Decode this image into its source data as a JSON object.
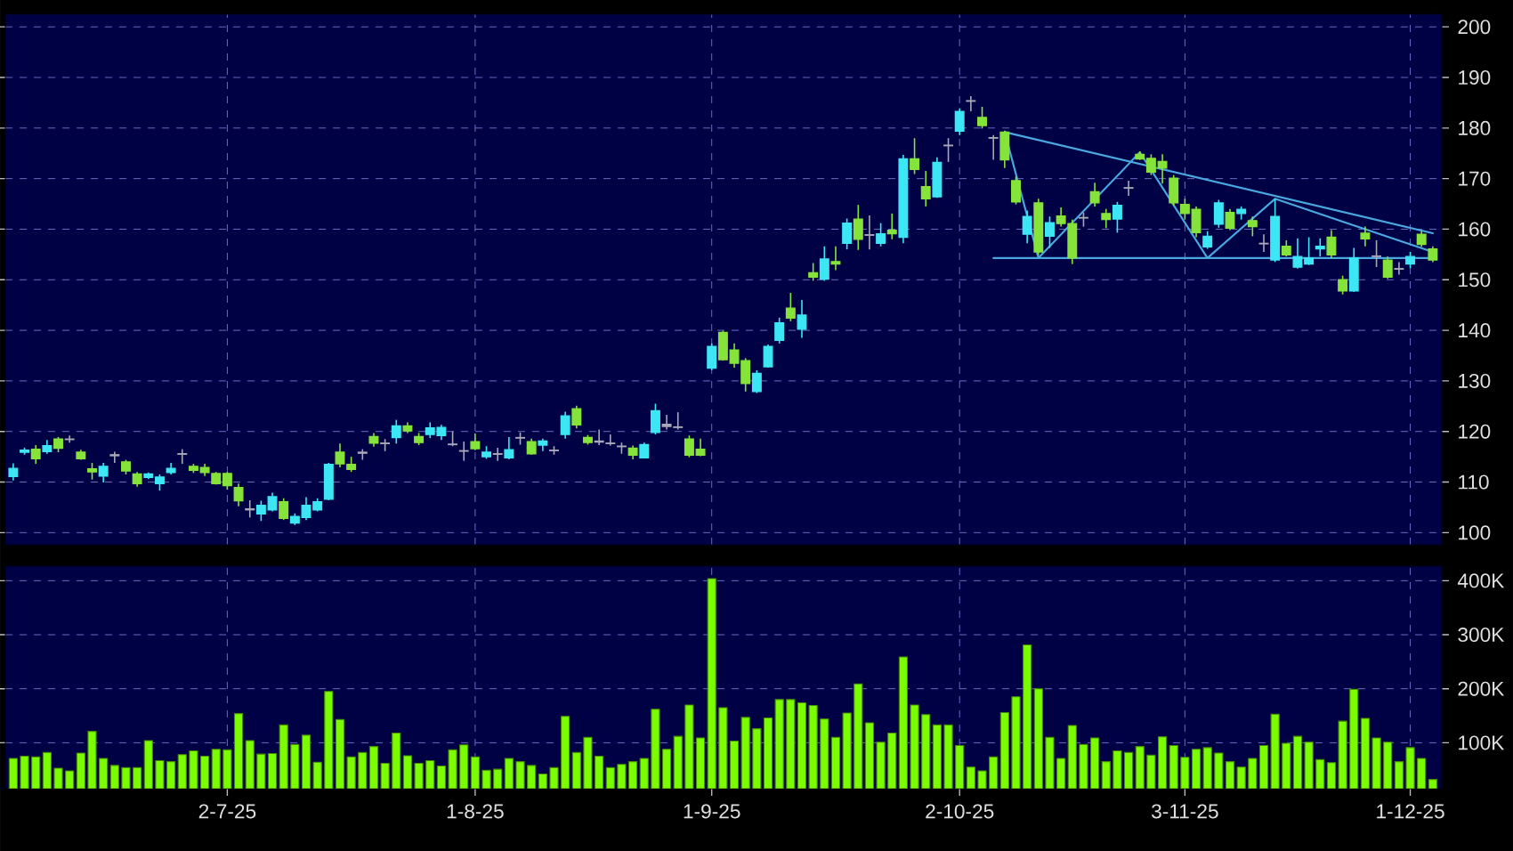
{
  "chart_data": [
    {
      "type": "candlestick",
      "tick_labels": "y",
      "grid": true,
      "ylim": [
        97.6,
        202.5
      ],
      "yticks": [
        100,
        110,
        120,
        130,
        140,
        150,
        160,
        170,
        180,
        190,
        200
      ],
      "categories": [
        null,
        null,
        null,
        null,
        null,
        null,
        null,
        null,
        null,
        null,
        null,
        null,
        null,
        null,
        null,
        null,
        null,
        null,
        null,
        null,
        null,
        null,
        null,
        null,
        null,
        null,
        null,
        null,
        null,
        null,
        null,
        null,
        null,
        null,
        null,
        null,
        null,
        null,
        null,
        null,
        null,
        null,
        null,
        null,
        null,
        null,
        null,
        null,
        null,
        null,
        null,
        null,
        null,
        null,
        null,
        null,
        null,
        null,
        null,
        null,
        null,
        null,
        null,
        null,
        null,
        null,
        null,
        null,
        null,
        null,
        null,
        null,
        null,
        null,
        null,
        null,
        null,
        null,
        null,
        null,
        null,
        null,
        null,
        null,
        null,
        null,
        null,
        null,
        null,
        null,
        null,
        null,
        null,
        null,
        null,
        null,
        null,
        null,
        null,
        null,
        null,
        null,
        null,
        null,
        null,
        null,
        null,
        null,
        null,
        null,
        null,
        null,
        null,
        null,
        null,
        null,
        null,
        null,
        null,
        null,
        null,
        null,
        null,
        null,
        null,
        null,
        null
      ],
      "ohlc": [
        [
          111.1,
          113.7,
          110.3,
          112.7
        ],
        [
          115.9,
          116.8,
          115.4,
          116.3
        ],
        [
          116.5,
          117.3,
          113.6,
          114.6
        ],
        [
          116.0,
          118.3,
          115.6,
          117.2
        ],
        [
          118.5,
          118.9,
          115.9,
          116.7
        ],
        [
          118.5,
          119.2,
          117.8,
          118.4
        ],
        [
          115.9,
          116.4,
          114.4,
          114.6
        ],
        [
          112.6,
          113.8,
          110.5,
          112.0
        ],
        [
          111.2,
          113.8,
          109.9,
          113.1
        ],
        [
          115.4,
          116.0,
          113.8,
          115.2
        ],
        [
          114.0,
          114.4,
          111.5,
          112.2
        ],
        [
          111.6,
          112.0,
          109.1,
          109.7
        ],
        [
          110.9,
          111.9,
          110.6,
          111.6
        ],
        [
          109.7,
          111.5,
          108.3,
          111.0
        ],
        [
          111.9,
          113.8,
          111.5,
          112.7
        ],
        [
          115.6,
          116.5,
          113.6,
          115.5
        ],
        [
          113.1,
          113.6,
          111.8,
          112.3
        ],
        [
          112.9,
          113.6,
          111.2,
          111.9
        ],
        [
          111.7,
          112.0,
          109.5,
          109.7
        ],
        [
          111.7,
          112.0,
          108.5,
          109.3
        ],
        [
          108.9,
          109.7,
          105.2,
          106.3
        ],
        [
          104.7,
          106.4,
          103.0,
          104.5
        ],
        [
          103.7,
          106.3,
          102.3,
          105.4
        ],
        [
          104.5,
          107.9,
          104.2,
          107.1
        ],
        [
          106.1,
          106.8,
          102.5,
          102.8
        ],
        [
          101.9,
          103.8,
          101.5,
          103.2
        ],
        [
          103.0,
          107.0,
          102.5,
          105.4
        ],
        [
          104.5,
          106.8,
          104.2,
          106.1
        ],
        [
          106.6,
          113.8,
          106.4,
          113.5
        ],
        [
          115.9,
          117.6,
          112.9,
          113.6
        ],
        [
          113.5,
          115.0,
          112.0,
          112.5
        ],
        [
          115.9,
          116.5,
          114.4,
          115.7
        ],
        [
          119.0,
          119.7,
          117.0,
          117.7
        ],
        [
          117.7,
          118.5,
          116.1,
          117.6
        ],
        [
          118.8,
          122.3,
          117.6,
          121.1
        ],
        [
          121.1,
          121.8,
          119.7,
          120.1
        ],
        [
          119.0,
          119.7,
          117.3,
          117.8
        ],
        [
          119.4,
          121.8,
          118.7,
          120.7
        ],
        [
          119.2,
          121.3,
          118.3,
          120.8
        ],
        [
          117.5,
          120.0,
          117.1,
          117.4
        ],
        [
          116.2,
          118.0,
          114.2,
          116.1
        ],
        [
          118.0,
          119.6,
          116.3,
          116.6
        ],
        [
          115.0,
          117.1,
          114.6,
          115.9
        ],
        [
          115.6,
          116.8,
          114.2,
          115.5
        ],
        [
          114.8,
          118.9,
          114.5,
          116.4
        ],
        [
          118.8,
          119.8,
          117.4,
          118.7
        ],
        [
          118.0,
          118.6,
          115.4,
          115.6
        ],
        [
          117.3,
          118.6,
          116.1,
          118.1
        ],
        [
          116.3,
          117.1,
          115.4,
          116.2
        ],
        [
          119.4,
          123.9,
          118.6,
          123.1
        ],
        [
          124.5,
          125.1,
          120.6,
          121.3
        ],
        [
          118.8,
          119.3,
          117.4,
          117.8
        ],
        [
          118.1,
          120.4,
          117.3,
          117.9
        ],
        [
          117.7,
          119.4,
          117.2,
          117.6
        ],
        [
          117.1,
          117.8,
          115.6,
          117.0
        ],
        [
          116.7,
          117.2,
          114.5,
          115.3
        ],
        [
          114.8,
          117.8,
          114.7,
          117.4
        ],
        [
          119.8,
          125.5,
          119.4,
          124.1
        ],
        [
          121.4,
          123.3,
          120.4,
          121.0
        ],
        [
          120.9,
          123.8,
          120.4,
          120.8
        ],
        [
          118.5,
          119.2,
          114.9,
          115.3
        ],
        [
          116.5,
          118.6,
          115.1,
          115.3
        ],
        [
          132.5,
          137.4,
          132.1,
          136.8
        ],
        [
          139.6,
          139.9,
          134.0,
          134.2
        ],
        [
          136.1,
          137.4,
          132.6,
          133.5
        ],
        [
          134.0,
          134.5,
          127.9,
          129.5
        ],
        [
          127.9,
          132.1,
          127.6,
          131.5
        ],
        [
          132.8,
          137.2,
          132.6,
          136.8
        ],
        [
          138.0,
          142.5,
          137.4,
          141.5
        ],
        [
          144.4,
          147.4,
          141.8,
          142.4
        ],
        [
          140.2,
          146.0,
          138.5,
          143.0
        ],
        [
          151.4,
          153.3,
          149.8,
          150.5
        ],
        [
          150.1,
          156.6,
          149.8,
          154.1
        ],
        [
          153.6,
          156.6,
          151.9,
          153.1
        ],
        [
          157.2,
          162.1,
          156.0,
          161.2
        ],
        [
          162.0,
          164.8,
          155.9,
          158.0
        ],
        [
          158.9,
          162.7,
          156.0,
          158.8
        ],
        [
          157.2,
          161.2,
          156.6,
          159.1
        ],
        [
          159.8,
          163.1,
          158.0,
          159.1
        ],
        [
          158.4,
          174.7,
          157.2,
          173.9
        ],
        [
          173.9,
          178.0,
          170.9,
          171.8
        ],
        [
          168.4,
          171.5,
          164.5,
          166.0
        ],
        [
          166.4,
          174.2,
          166.2,
          173.2
        ],
        [
          176.6,
          178.0,
          173.3,
          176.5
        ],
        [
          179.4,
          183.9,
          178.6,
          183.3
        ],
        [
          185.4,
          186.3,
          183.3,
          185.3
        ],
        [
          182.1,
          184.2,
          179.9,
          180.5
        ],
        [
          178.1,
          178.6,
          173.7,
          178.0
        ],
        [
          179.2,
          179.5,
          172.1,
          173.7
        ],
        [
          169.6,
          170.4,
          164.9,
          165.4
        ],
        [
          159.0,
          163.7,
          157.2,
          162.5
        ],
        [
          165.2,
          166.0,
          154.9,
          155.5
        ],
        [
          158.6,
          162.5,
          156.3,
          161.3
        ],
        [
          162.6,
          164.3,
          160.5,
          161.1
        ],
        [
          161.1,
          161.9,
          153.1,
          154.3
        ],
        [
          162.3,
          163.3,
          160.5,
          162.2
        ],
        [
          167.4,
          169.2,
          164.5,
          165.2
        ],
        [
          163.1,
          164.0,
          160.2,
          161.9
        ],
        [
          162.0,
          165.4,
          159.3,
          164.7
        ],
        [
          168.2,
          169.6,
          166.6,
          168.1
        ],
        [
          174.8,
          175.4,
          173.7,
          173.9
        ],
        [
          174.0,
          174.8,
          170.7,
          171.3
        ],
        [
          173.4,
          174.8,
          169.0,
          172.1
        ],
        [
          170.1,
          170.7,
          164.7,
          165.2
        ],
        [
          164.9,
          166.0,
          161.9,
          163.1
        ],
        [
          163.9,
          164.5,
          158.4,
          159.3
        ],
        [
          156.5,
          159.6,
          156.1,
          158.6
        ],
        [
          161.0,
          165.8,
          160.3,
          165.2
        ],
        [
          163.3,
          164.0,
          159.8,
          160.2
        ],
        [
          163.1,
          164.5,
          161.9,
          163.9
        ],
        [
          161.7,
          162.5,
          158.6,
          160.5
        ],
        [
          157.2,
          159.0,
          155.5,
          157.1
        ],
        [
          153.9,
          166.0,
          153.5,
          162.5
        ],
        [
          156.6,
          157.8,
          154.6,
          154.9
        ],
        [
          152.5,
          158.2,
          152.2,
          154.6
        ],
        [
          153.1,
          158.4,
          152.9,
          154.3
        ],
        [
          156.1,
          158.2,
          154.6,
          156.6
        ],
        [
          158.4,
          159.8,
          154.3,
          154.9
        ],
        [
          150.0,
          150.8,
          147.1,
          147.8
        ],
        [
          147.8,
          156.3,
          147.6,
          154.3
        ],
        [
          159.2,
          160.5,
          156.6,
          158.1
        ],
        [
          154.7,
          157.8,
          152.5,
          154.6
        ],
        [
          153.9,
          154.6,
          150.2,
          150.5
        ],
        [
          152.2,
          153.5,
          151.0,
          152.1
        ],
        [
          153.1,
          155.5,
          152.3,
          154.6
        ],
        [
          159.0,
          159.6,
          156.5,
          157.0
        ],
        [
          156.1,
          156.6,
          153.5,
          153.9
        ]
      ],
      "colors": [
        "#3ce6f5",
        "#3ce6f5",
        "#86e33a",
        "#3ce6f5",
        "#86e33a",
        "#a8a8b8",
        "#86e33a",
        "#86e33a",
        "#3ce6f5",
        "#a8a8b8",
        "#86e33a",
        "#86e33a",
        "#3ce6f5",
        "#3ce6f5",
        "#3ce6f5",
        "#a8a8b8",
        "#86e33a",
        "#86e33a",
        "#86e33a",
        "#86e33a",
        "#86e33a",
        "#a8a8b8",
        "#3ce6f5",
        "#3ce6f5",
        "#86e33a",
        "#3ce6f5",
        "#3ce6f5",
        "#3ce6f5",
        "#3ce6f5",
        "#86e33a",
        "#86e33a",
        "#a8a8b8",
        "#86e33a",
        "#a8a8b8",
        "#3ce6f5",
        "#86e33a",
        "#86e33a",
        "#3ce6f5",
        "#3ce6f5",
        "#a8a8b8",
        "#a8a8b8",
        "#86e33a",
        "#3ce6f5",
        "#a8a8b8",
        "#3ce6f5",
        "#a8a8b8",
        "#86e33a",
        "#3ce6f5",
        "#a8a8b8",
        "#3ce6f5",
        "#86e33a",
        "#86e33a",
        "#a8a8b8",
        "#a8a8b8",
        "#a8a8b8",
        "#86e33a",
        "#3ce6f5",
        "#3ce6f5",
        "#a8a8b8",
        "#a8a8b8",
        "#86e33a",
        "#86e33a",
        "#3ce6f5",
        "#86e33a",
        "#86e33a",
        "#86e33a",
        "#3ce6f5",
        "#3ce6f5",
        "#3ce6f5",
        "#86e33a",
        "#3ce6f5",
        "#86e33a",
        "#3ce6f5",
        "#86e33a",
        "#3ce6f5",
        "#86e33a",
        "#a8a8b8",
        "#3ce6f5",
        "#86e33a",
        "#3ce6f5",
        "#86e33a",
        "#86e33a",
        "#3ce6f5",
        "#a8a8b8",
        "#3ce6f5",
        "#a8a8b8",
        "#86e33a",
        "#a8a8b8",
        "#86e33a",
        "#86e33a",
        "#3ce6f5",
        "#86e33a",
        "#3ce6f5",
        "#86e33a",
        "#86e33a",
        "#a8a8b8",
        "#86e33a",
        "#86e33a",
        "#3ce6f5",
        "#a8a8b8",
        "#86e33a",
        "#86e33a",
        "#86e33a",
        "#86e33a",
        "#86e33a",
        "#86e33a",
        "#3ce6f5",
        "#3ce6f5",
        "#86e33a",
        "#3ce6f5",
        "#86e33a",
        "#a8a8b8",
        "#3ce6f5",
        "#86e33a",
        "#3ce6f5",
        "#3ce6f5",
        "#3ce6f5",
        "#86e33a",
        "#86e33a",
        "#3ce6f5",
        "#86e33a",
        "#a8a8b8",
        "#86e33a",
        "#a8a8b8",
        "#3ce6f5",
        "#86e33a",
        "#86e33a"
      ],
      "series": [
        {
          "type": "line",
          "color": "#4aa8e0",
          "values": [
            null,
            null,
            null,
            null,
            null,
            null,
            null,
            null,
            null,
            null,
            null,
            null,
            null,
            null,
            null,
            null,
            null,
            null,
            null,
            null,
            null,
            null,
            null,
            null,
            null,
            null,
            null,
            null,
            null,
            null,
            null,
            null,
            null,
            null,
            null,
            null,
            null,
            null,
            null,
            null,
            null,
            null,
            null,
            null,
            null,
            null,
            null,
            null,
            null,
            null,
            null,
            null,
            null,
            null,
            null,
            null,
            null,
            null,
            null,
            null,
            null,
            null,
            null,
            null,
            null,
            null,
            null,
            null,
            null,
            null,
            null,
            null,
            null,
            null,
            null,
            null,
            null,
            null,
            null,
            null,
            null,
            null,
            null,
            null,
            null,
            null,
            null,
            null,
            179.2,
            null,
            null,
            null,
            null,
            null,
            null,
            null,
            null,
            null,
            null,
            null,
            null,
            null,
            null,
            null,
            null,
            null,
            null,
            null,
            null,
            null,
            null,
            null,
            null,
            null,
            null,
            null,
            null,
            null,
            null,
            null,
            null,
            null,
            null,
            null,
            null,
            null,
            159.2
          ]
        },
        {
          "type": "line",
          "color": "#4aa8e0",
          "values": [
            null,
            null,
            null,
            null,
            null,
            null,
            null,
            null,
            null,
            null,
            null,
            null,
            null,
            null,
            null,
            null,
            null,
            null,
            null,
            null,
            null,
            null,
            null,
            null,
            null,
            null,
            null,
            null,
            null,
            null,
            null,
            null,
            null,
            null,
            null,
            null,
            null,
            null,
            null,
            null,
            null,
            null,
            null,
            null,
            null,
            null,
            null,
            null,
            null,
            null,
            null,
            null,
            null,
            null,
            null,
            null,
            null,
            null,
            null,
            null,
            null,
            null,
            null,
            null,
            null,
            null,
            null,
            null,
            null,
            null,
            null,
            null,
            null,
            null,
            null,
            null,
            null,
            null,
            null,
            null,
            null,
            null,
            null,
            null,
            null,
            null,
            null,
            null,
            179.2,
            null,
            null,
            154.3,
            null,
            null,
            null,
            null,
            null,
            null,
            null,
            null,
            175.2,
            null,
            null,
            null,
            null,
            null,
            154.3,
            null,
            null,
            null,
            null,
            null,
            166.0,
            null,
            null,
            null,
            null,
            null,
            null,
            null,
            null,
            null,
            null,
            null,
            null,
            null,
            155.5
          ]
        },
        {
          "type": "line",
          "color": "#4aa8e0",
          "values": [
            null,
            null,
            null,
            null,
            null,
            null,
            null,
            null,
            null,
            null,
            null,
            null,
            null,
            null,
            null,
            null,
            null,
            null,
            null,
            null,
            null,
            null,
            null,
            null,
            null,
            null,
            null,
            null,
            null,
            null,
            null,
            null,
            null,
            null,
            null,
            null,
            null,
            null,
            null,
            null,
            null,
            null,
            null,
            null,
            null,
            null,
            null,
            null,
            null,
            null,
            null,
            null,
            null,
            null,
            null,
            null,
            null,
            null,
            null,
            null,
            null,
            null,
            null,
            null,
            null,
            null,
            null,
            null,
            null,
            null,
            null,
            null,
            null,
            null,
            null,
            null,
            null,
            null,
            null,
            null,
            null,
            null,
            null,
            null,
            null,
            null,
            null,
            154.3,
            null,
            null,
            null,
            null,
            null,
            null,
            null,
            null,
            null,
            null,
            null,
            null,
            null,
            null,
            null,
            null,
            null,
            null,
            null,
            null,
            null,
            null,
            null,
            null,
            null,
            null,
            null,
            null,
            null,
            null,
            null,
            null,
            null,
            null,
            null,
            null,
            null,
            null,
            154.3
          ]
        }
      ]
    },
    {
      "type": "bar",
      "grid": true,
      "color": "#7cfc00",
      "ylim": [
        15000,
        427000
      ],
      "yticks": [
        {
          "value": 100000,
          "label": "100K"
        },
        {
          "value": 200000,
          "label": "200K"
        },
        {
          "value": 300000,
          "label": "300K"
        },
        {
          "value": 400000,
          "label": "400K"
        }
      ],
      "categories": [
        null,
        null,
        null,
        null,
        null,
        null,
        null,
        null,
        null,
        null,
        null,
        null,
        null,
        null,
        null,
        null,
        null,
        null,
        null,
        "2-7-25",
        null,
        null,
        null,
        null,
        null,
        null,
        null,
        null,
        null,
        null,
        null,
        null,
        null,
        null,
        null,
        null,
        null,
        null,
        null,
        null,
        null,
        "1-8-25",
        null,
        null,
        null,
        null,
        null,
        null,
        null,
        null,
        null,
        null,
        null,
        null,
        null,
        null,
        null,
        null,
        null,
        null,
        null,
        null,
        "1-9-25",
        null,
        null,
        null,
        null,
        null,
        null,
        null,
        null,
        null,
        null,
        null,
        null,
        null,
        null,
        null,
        null,
        null,
        null,
        null,
        null,
        null,
        "2-10-25",
        null,
        null,
        null,
        null,
        null,
        null,
        null,
        null,
        null,
        null,
        null,
        null,
        null,
        null,
        null,
        null,
        null,
        null,
        null,
        "3-11-25",
        null,
        null,
        null,
        null,
        null,
        null,
        null,
        null,
        null,
        null,
        null,
        null,
        null,
        null,
        null,
        null,
        null,
        null,
        null,
        "1-12-25",
        null,
        null
      ],
      "values": [
        71000,
        75000,
        74000,
        82000,
        53000,
        48000,
        81000,
        121000,
        71000,
        58000,
        54000,
        54000,
        104000,
        67000,
        65000,
        78000,
        85000,
        75000,
        88000,
        87000,
        154000,
        104000,
        79000,
        80000,
        133000,
        97000,
        114000,
        64000,
        195000,
        143000,
        74000,
        82000,
        93000,
        62000,
        118000,
        76000,
        62000,
        67000,
        57000,
        87000,
        96000,
        74000,
        49000,
        51000,
        71000,
        65000,
        58000,
        42000,
        54000,
        149000,
        82000,
        110000,
        75000,
        54000,
        60000,
        65000,
        71000,
        162000,
        88000,
        112000,
        170000,
        109000,
        404000,
        165000,
        103000,
        147000,
        126000,
        146000,
        180000,
        180000,
        174000,
        169000,
        144000,
        110000,
        155000,
        209000,
        137000,
        101000,
        118000,
        259000,
        170000,
        152000,
        133000,
        133000,
        95000,
        55000,
        48000,
        74000,
        156000,
        185000,
        281000,
        200000,
        110000,
        71000,
        132000,
        97000,
        109000,
        65000,
        85000,
        82000,
        93000,
        77000,
        111000,
        95000,
        73000,
        88000,
        91000,
        81000,
        65000,
        55000,
        71000,
        95000,
        153000,
        99000,
        112000,
        101000,
        69000,
        63000,
        140000,
        199000,
        145000,
        109000,
        101000,
        65000,
        91000,
        71000,
        32000
      ]
    }
  ]
}
